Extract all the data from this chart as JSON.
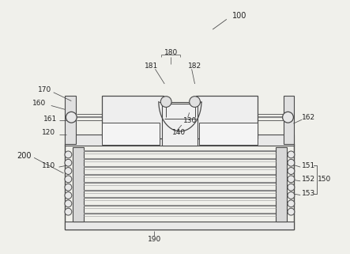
{
  "bg_color": "#f0f0eb",
  "line_color": "#4a4a4a",
  "fig_width": 4.43,
  "fig_height": 3.21,
  "dpi": 100
}
